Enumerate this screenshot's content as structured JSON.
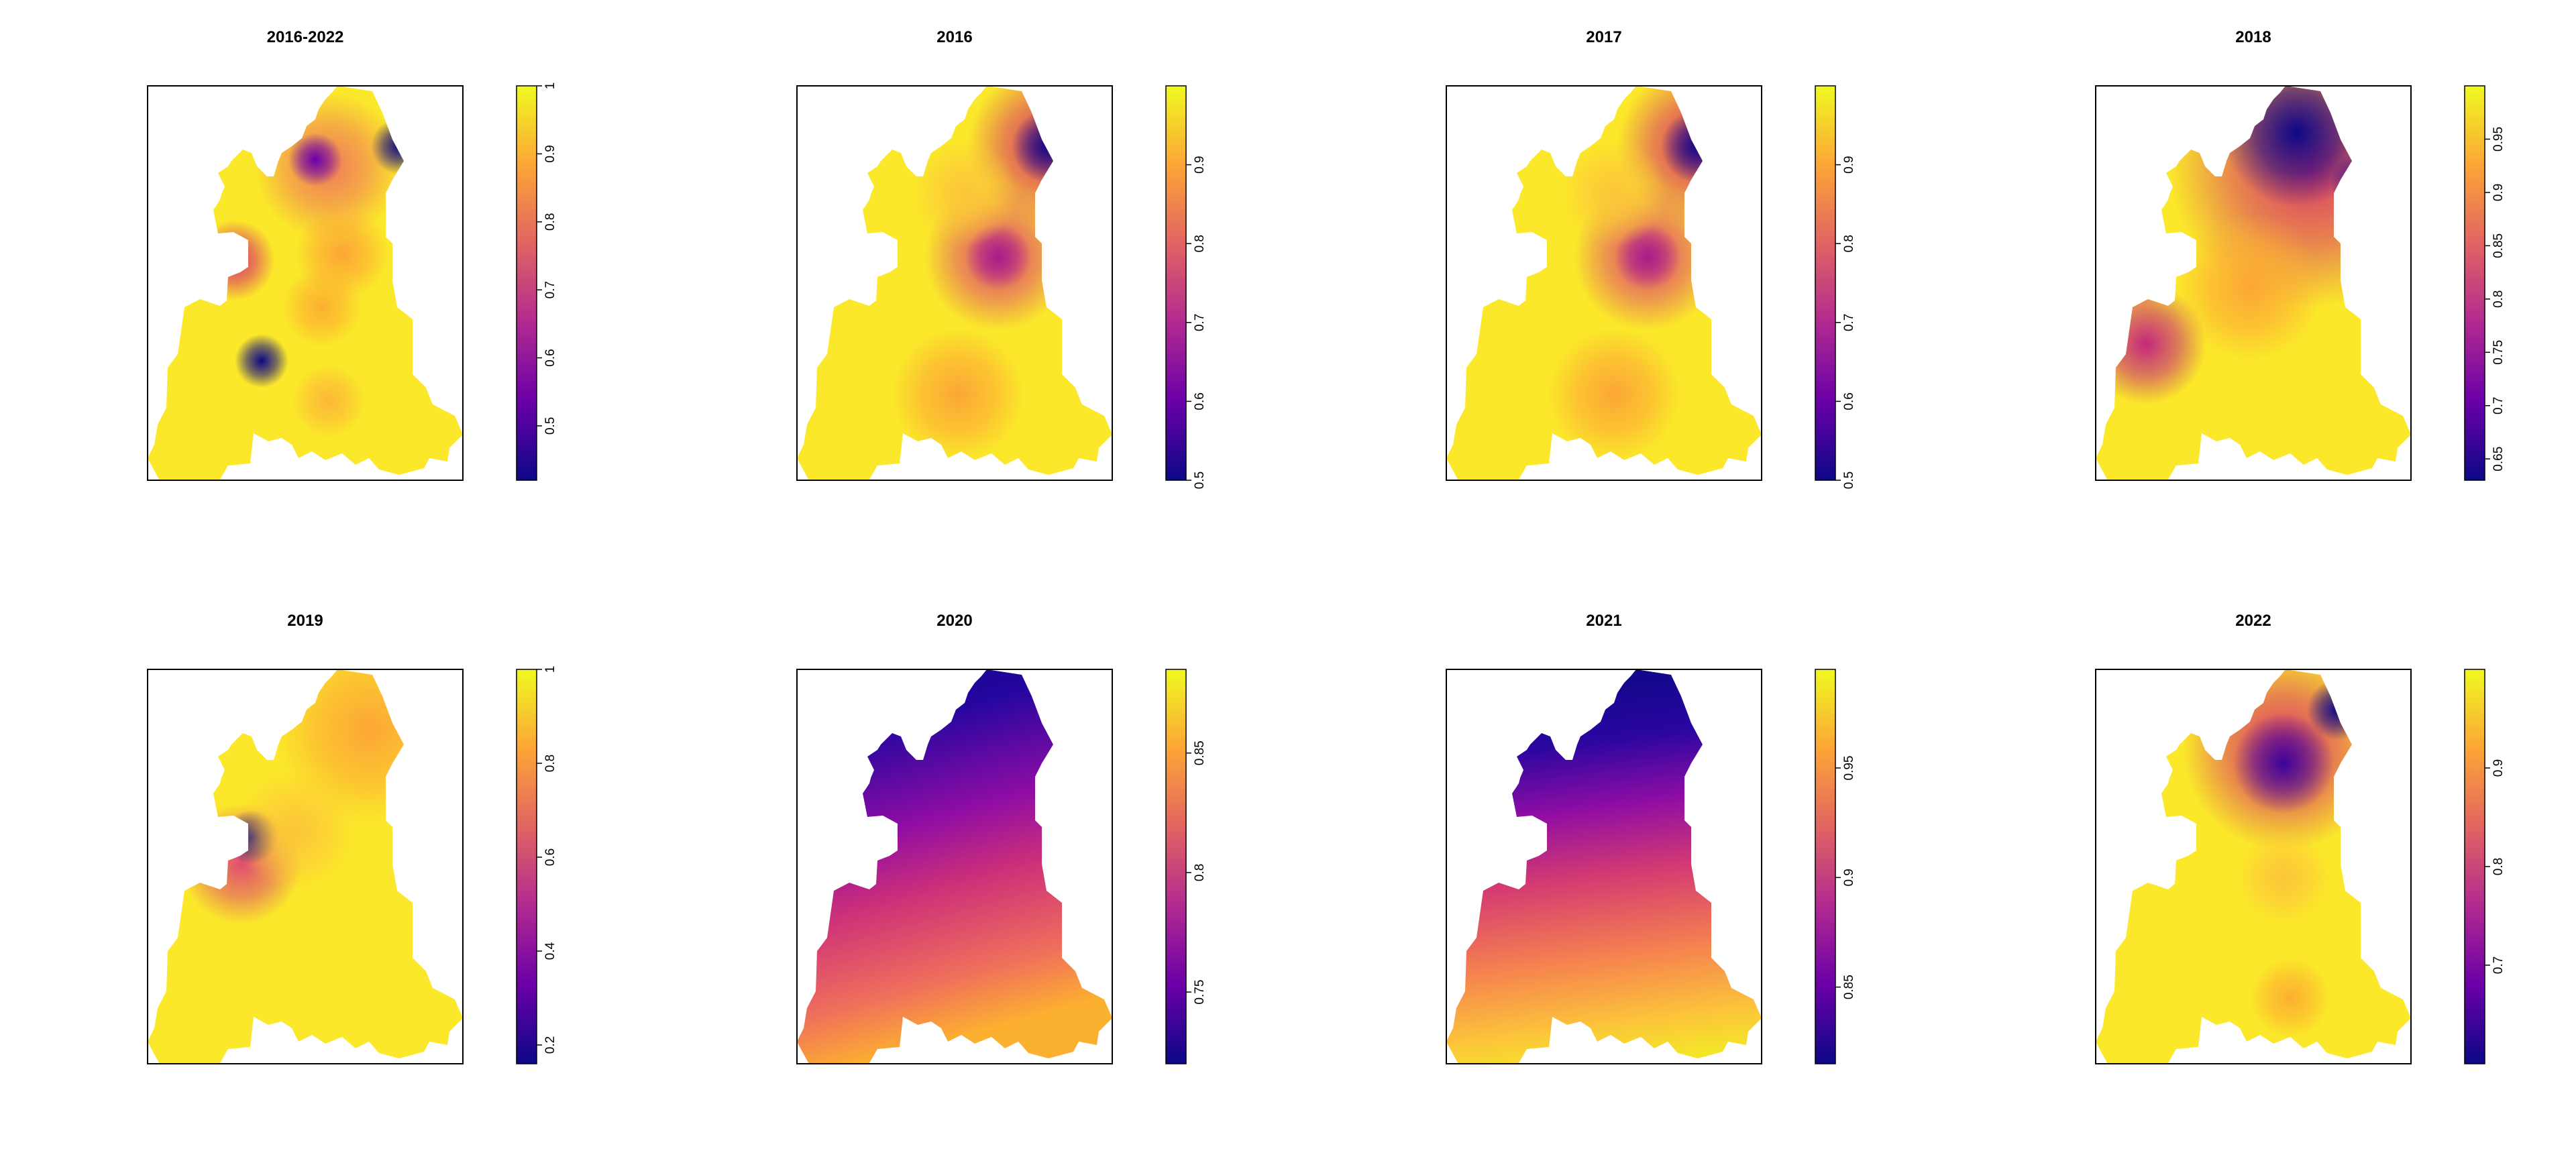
{
  "colors": {
    "palette_name": "plasma",
    "palette_stops": [
      "#0d0887",
      "#6a00a8",
      "#b12a90",
      "#e16462",
      "#fca636",
      "#f0f921"
    ],
    "frame": "#000000",
    "background": "#ffffff"
  },
  "panels": [
    {
      "title": "2016-2022",
      "scale": {
        "min": 0.42,
        "max": 1.0,
        "ticks": [
          "0.5",
          "0.6",
          "0.7",
          "0.8",
          "0.9",
          "1"
        ],
        "tick_values": [
          0.5,
          0.6,
          0.7,
          0.8,
          0.9,
          1.0
        ]
      }
    },
    {
      "title": "2016",
      "scale": {
        "min": 0.5,
        "max": 1.0,
        "ticks": [
          "0.5",
          "0.6",
          "0.7",
          "0.8",
          "0.9"
        ],
        "tick_values": [
          0.5,
          0.6,
          0.7,
          0.8,
          0.9
        ]
      }
    },
    {
      "title": "2017",
      "scale": {
        "min": 0.5,
        "max": 1.0,
        "ticks": [
          "0.5",
          "0.6",
          "0.7",
          "0.8",
          "0.9"
        ],
        "tick_values": [
          0.5,
          0.6,
          0.7,
          0.8,
          0.9
        ]
      }
    },
    {
      "title": "2018",
      "scale": {
        "min": 0.63,
        "max": 1.0,
        "ticks": [
          "0.65",
          "0.7",
          "0.75",
          "0.8",
          "0.85",
          "0.9",
          "0.95"
        ],
        "tick_values": [
          0.65,
          0.7,
          0.75,
          0.8,
          0.85,
          0.9,
          0.95
        ]
      }
    },
    {
      "title": "2019",
      "scale": {
        "min": 0.16,
        "max": 1.0,
        "ticks": [
          "0.2",
          "0.4",
          "0.6",
          "0.8",
          "1"
        ],
        "tick_values": [
          0.2,
          0.4,
          0.6,
          0.8,
          1.0
        ]
      }
    },
    {
      "title": "2020",
      "scale": {
        "min": 0.72,
        "max": 0.885,
        "ticks": [
          "0.75",
          "0.8",
          "0.85"
        ],
        "tick_values": [
          0.75,
          0.8,
          0.85
        ]
      }
    },
    {
      "title": "2021",
      "scale": {
        "min": 0.815,
        "max": 0.995,
        "ticks": [
          "0.85",
          "0.9",
          "0.95"
        ],
        "tick_values": [
          0.85,
          0.9,
          0.95
        ]
      }
    },
    {
      "title": "2022",
      "scale": {
        "min": 0.6,
        "max": 1.0,
        "ticks": [
          "0.7",
          "0.8",
          "0.9"
        ],
        "tick_values": [
          0.7,
          0.8,
          0.9
        ]
      }
    }
  ]
}
